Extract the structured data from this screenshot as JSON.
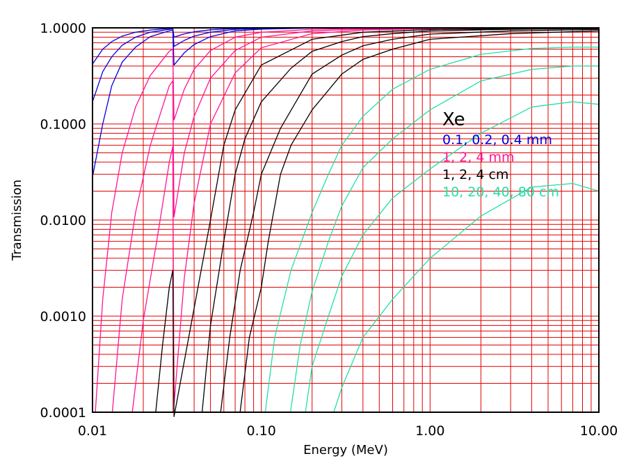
{
  "chart_data": {
    "type": "line",
    "xlabel": "Energy (MeV)",
    "ylabel": "Transmission",
    "x_scale": "log",
    "y_scale": "log",
    "xlim": [
      0.01,
      10.0
    ],
    "ylim": [
      0.0001,
      1.0
    ],
    "x_ticks": [
      0.01,
      0.1,
      1.0,
      10.0
    ],
    "x_tick_labels": [
      "0.01",
      "0.10",
      "1.00",
      "10.00"
    ],
    "y_ticks": [
      0.0001,
      0.001,
      0.01,
      0.1,
      1.0
    ],
    "y_tick_labels": [
      "0.0001",
      "0.0010",
      "0.0100",
      "0.1000",
      "1.0000"
    ],
    "grid": true,
    "grid_color": "#e00000",
    "legend_placement": "right-center",
    "legend_title": "Xe",
    "legend_title_color": "#000000",
    "legend_entries": [
      {
        "text": "0.1, 0.2, 0.4 mm",
        "color": "#0000e0"
      },
      {
        "text": "1, 2, 4 mm",
        "color": "#ff1493"
      },
      {
        "text": "1, 2, 4 cm",
        "color": "#000000"
      },
      {
        "text": "10, 20, 40, 80 cm",
        "color": "#20e0a8"
      }
    ],
    "series": [
      {
        "color": "#0000e0",
        "points": [
          [
            0.01,
            0.42
          ],
          [
            0.0115,
            0.6
          ],
          [
            0.013,
            0.72
          ],
          [
            0.015,
            0.82
          ],
          [
            0.018,
            0.9
          ],
          [
            0.022,
            0.95
          ],
          [
            0.0285,
            0.985
          ],
          [
            0.0299,
            0.99
          ],
          [
            0.0304,
            0.8
          ],
          [
            0.0345,
            0.86
          ],
          [
            0.04,
            0.91
          ],
          [
            0.05,
            0.955
          ],
          [
            0.07,
            0.985
          ],
          [
            0.1,
            0.995
          ],
          [
            0.2,
            1.0
          ],
          [
            0.4,
            1.0
          ]
        ]
      },
      {
        "color": "#0000e0",
        "points": [
          [
            0.01,
            0.17
          ],
          [
            0.0115,
            0.35
          ],
          [
            0.013,
            0.5
          ],
          [
            0.015,
            0.66
          ],
          [
            0.018,
            0.8
          ],
          [
            0.022,
            0.9
          ],
          [
            0.0285,
            0.965
          ],
          [
            0.0299,
            0.975
          ],
          [
            0.0304,
            0.64
          ],
          [
            0.035,
            0.74
          ],
          [
            0.04,
            0.82
          ],
          [
            0.05,
            0.9
          ],
          [
            0.07,
            0.965
          ],
          [
            0.1,
            0.985
          ],
          [
            0.2,
            0.997
          ],
          [
            0.4,
            1.0
          ],
          [
            1.0,
            1.0
          ]
        ]
      },
      {
        "color": "#0000e0",
        "points": [
          [
            0.01,
            0.028
          ],
          [
            0.0115,
            0.1
          ],
          [
            0.013,
            0.25
          ],
          [
            0.015,
            0.44
          ],
          [
            0.018,
            0.63
          ],
          [
            0.022,
            0.81
          ],
          [
            0.0285,
            0.93
          ],
          [
            0.0299,
            0.95
          ],
          [
            0.0304,
            0.41
          ],
          [
            0.035,
            0.55
          ],
          [
            0.04,
            0.67
          ],
          [
            0.05,
            0.81
          ],
          [
            0.07,
            0.93
          ],
          [
            0.1,
            0.97
          ],
          [
            0.2,
            0.995
          ],
          [
            0.4,
            1.0
          ],
          [
            1.0,
            1.0
          ]
        ]
      },
      {
        "color": "#ff1493",
        "points": [
          [
            0.0104,
            0.0001
          ],
          [
            0.0115,
            0.0015
          ],
          [
            0.013,
            0.012
          ],
          [
            0.015,
            0.05
          ],
          [
            0.018,
            0.15
          ],
          [
            0.022,
            0.32
          ],
          [
            0.0285,
            0.57
          ],
          [
            0.0299,
            0.6
          ],
          [
            0.0304,
            0.11
          ],
          [
            0.035,
            0.23
          ],
          [
            0.04,
            0.37
          ],
          [
            0.05,
            0.58
          ],
          [
            0.07,
            0.8
          ],
          [
            0.1,
            0.9
          ],
          [
            0.2,
            0.965
          ],
          [
            0.4,
            0.99
          ],
          [
            1.0,
            0.997
          ],
          [
            10.0,
            1.0
          ]
        ]
      },
      {
        "color": "#ff1493",
        "points": [
          [
            0.0131,
            0.0001
          ],
          [
            0.015,
            0.0015
          ],
          [
            0.018,
            0.012
          ],
          [
            0.022,
            0.06
          ],
          [
            0.0285,
            0.25
          ],
          [
            0.0299,
            0.28
          ],
          [
            0.0304,
            0.0108
          ],
          [
            0.035,
            0.05
          ],
          [
            0.04,
            0.12
          ],
          [
            0.05,
            0.3
          ],
          [
            0.07,
            0.58
          ],
          [
            0.1,
            0.8
          ],
          [
            0.2,
            0.93
          ],
          [
            0.4,
            0.97
          ],
          [
            1.0,
            0.99
          ],
          [
            10.0,
            1.0
          ]
        ]
      },
      {
        "color": "#ff1493",
        "points": [
          [
            0.0172,
            0.0001
          ],
          [
            0.02,
            0.0009
          ],
          [
            0.024,
            0.006
          ],
          [
            0.0285,
            0.04
          ],
          [
            0.0299,
            0.058
          ],
          [
            0.0304,
            0.00012
          ],
          [
            0.035,
            0.0025
          ],
          [
            0.04,
            0.015
          ],
          [
            0.05,
            0.1
          ],
          [
            0.07,
            0.34
          ],
          [
            0.1,
            0.62
          ],
          [
            0.2,
            0.87
          ],
          [
            0.4,
            0.95
          ],
          [
            1.0,
            0.98
          ],
          [
            10.0,
            0.995
          ]
        ]
      },
      {
        "color": "#000000",
        "points": [
          [
            0.0237,
            0.0001
          ],
          [
            0.026,
            0.0005
          ],
          [
            0.0285,
            0.002
          ],
          [
            0.0299,
            0.003
          ],
          [
            0.0304,
            9e-05
          ],
          [
            0.05,
            0.01
          ],
          [
            0.06,
            0.06
          ],
          [
            0.07,
            0.14
          ],
          [
            0.1,
            0.41
          ],
          [
            0.2,
            0.76
          ],
          [
            0.4,
            0.9
          ],
          [
            1.0,
            0.96
          ],
          [
            10.0,
            0.99
          ]
        ]
      },
      {
        "color": "#000000",
        "points": [
          [
            0.0446,
            0.0001
          ],
          [
            0.05,
            0.0008
          ],
          [
            0.06,
            0.006
          ],
          [
            0.07,
            0.03
          ],
          [
            0.08,
            0.07
          ],
          [
            0.1,
            0.17
          ],
          [
            0.15,
            0.38
          ],
          [
            0.2,
            0.57
          ],
          [
            0.3,
            0.72
          ],
          [
            0.4,
            0.81
          ],
          [
            0.6,
            0.87
          ],
          [
            1.0,
            0.93
          ],
          [
            3.0,
            0.965
          ],
          [
            10.0,
            0.98
          ]
        ]
      },
      {
        "color": "#000000",
        "points": [
          [
            0.0574,
            0.0001
          ],
          [
            0.065,
            0.0006
          ],
          [
            0.075,
            0.003
          ],
          [
            0.09,
            0.012
          ],
          [
            0.1,
            0.03
          ],
          [
            0.13,
            0.09
          ],
          [
            0.2,
            0.33
          ],
          [
            0.3,
            0.52
          ],
          [
            0.4,
            0.65
          ],
          [
            0.6,
            0.76
          ],
          [
            1.0,
            0.86
          ],
          [
            3.0,
            0.93
          ],
          [
            10.0,
            0.96
          ]
        ]
      },
      {
        "color": "#000000",
        "points": [
          [
            0.0749,
            0.0001
          ],
          [
            0.085,
            0.0006
          ],
          [
            0.1,
            0.002
          ],
          [
            0.11,
            0.006
          ],
          [
            0.13,
            0.03
          ],
          [
            0.15,
            0.06
          ],
          [
            0.2,
            0.14
          ],
          [
            0.3,
            0.33
          ],
          [
            0.4,
            0.47
          ],
          [
            0.6,
            0.6
          ],
          [
            1.0,
            0.76
          ],
          [
            3.0,
            0.87
          ],
          [
            10.0,
            0.93
          ]
        ]
      },
      {
        "color": "#20e0a8",
        "points": [
          [
            0.1056,
            0.0001
          ],
          [
            0.12,
            0.0006
          ],
          [
            0.15,
            0.003
          ],
          [
            0.2,
            0.012
          ],
          [
            0.25,
            0.03
          ],
          [
            0.3,
            0.06
          ],
          [
            0.4,
            0.12
          ],
          [
            0.6,
            0.23
          ],
          [
            1.0,
            0.37
          ],
          [
            2.0,
            0.53
          ],
          [
            4.0,
            0.61
          ],
          [
            7.0,
            0.63
          ],
          [
            10.0,
            0.63
          ]
        ]
      },
      {
        "color": "#20e0a8",
        "points": [
          [
            0.1488,
            0.0001
          ],
          [
            0.17,
            0.0005
          ],
          [
            0.2,
            0.0018
          ],
          [
            0.25,
            0.006
          ],
          [
            0.3,
            0.014
          ],
          [
            0.4,
            0.035
          ],
          [
            0.6,
            0.07
          ],
          [
            1.0,
            0.14
          ],
          [
            2.0,
            0.28
          ],
          [
            4.0,
            0.37
          ],
          [
            7.0,
            0.4
          ],
          [
            10.0,
            0.4
          ]
        ]
      },
      {
        "color": "#20e0a8",
        "points": [
          [
            0.1826,
            0.0001
          ],
          [
            0.2,
            0.0003
          ],
          [
            0.25,
            0.001
          ],
          [
            0.3,
            0.0026
          ],
          [
            0.4,
            0.007
          ],
          [
            0.6,
            0.017
          ],
          [
            1.0,
            0.034
          ],
          [
            2.0,
            0.08
          ],
          [
            4.0,
            0.15
          ],
          [
            7.0,
            0.17
          ],
          [
            10.0,
            0.16
          ]
        ]
      },
      {
        "color": "#20e0a8",
        "points": [
          [
            0.2687,
            0.0001
          ],
          [
            0.3,
            0.00018
          ],
          [
            0.4,
            0.0006
          ],
          [
            0.6,
            0.0015
          ],
          [
            1.0,
            0.004
          ],
          [
            2.0,
            0.011
          ],
          [
            4.0,
            0.022
          ],
          [
            7.0,
            0.024
          ],
          [
            10.0,
            0.02
          ]
        ]
      }
    ]
  }
}
